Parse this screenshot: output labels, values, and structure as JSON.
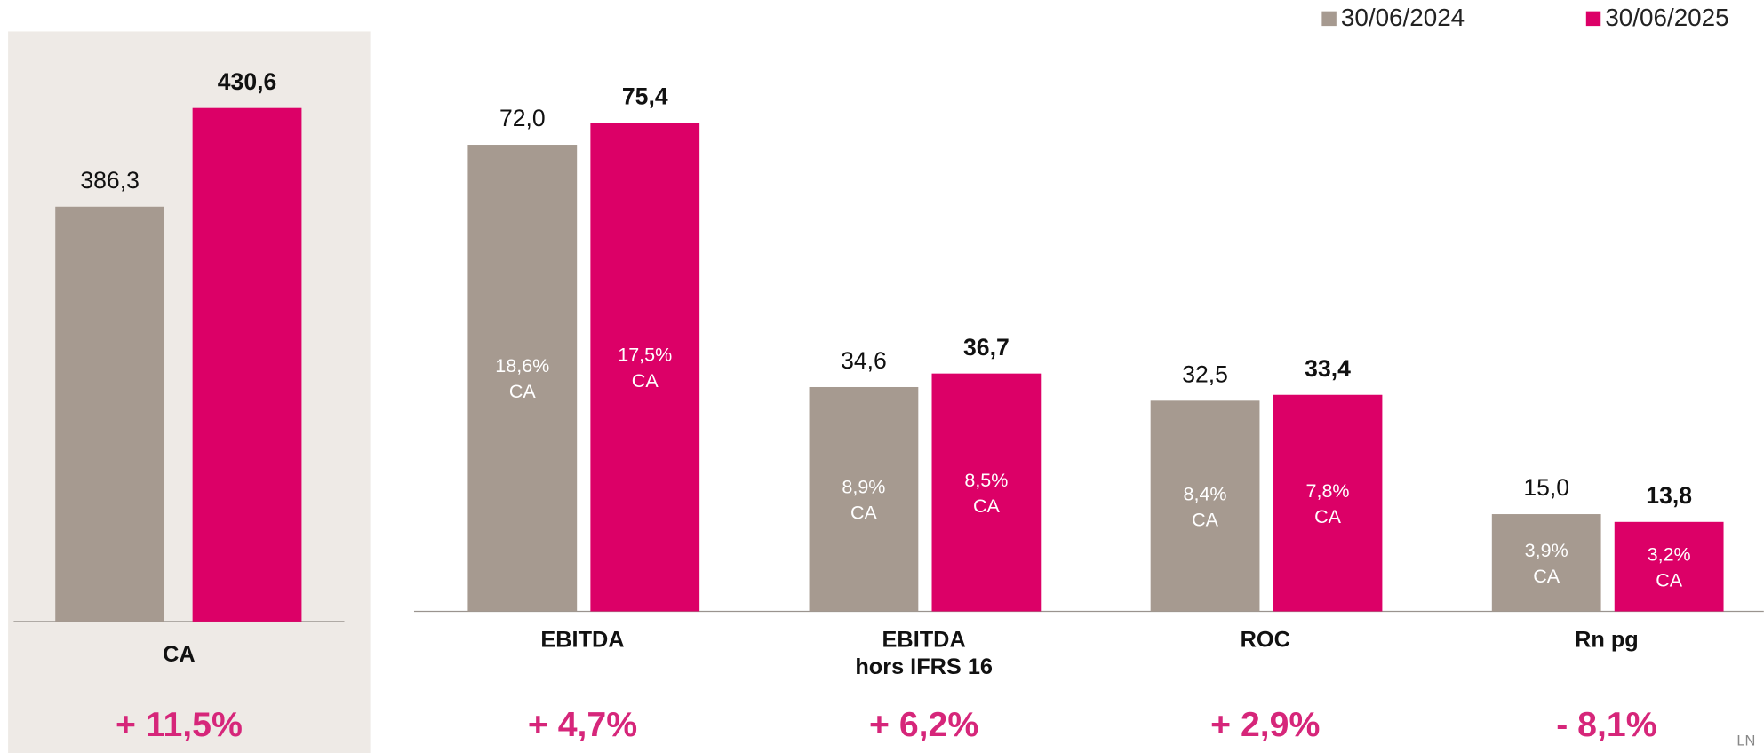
{
  "legend": [
    "30/06/2024",
    "30/06/2025"
  ],
  "footer": "LN",
  "chart_data": [
    {
      "type": "bar",
      "categories": [
        "CA"
      ],
      "series": [
        {
          "name": "30/06/2024",
          "color": "#a69a90",
          "values": [
            386.3
          ],
          "value_labels": [
            "386,3"
          ]
        },
        {
          "name": "30/06/2025",
          "color": "#dc0067",
          "values": [
            430.6
          ],
          "value_labels": [
            "430,6"
          ]
        }
      ],
      "ylim": [
        200,
        465
      ],
      "change_labels": [
        "+ 11,5%"
      ]
    },
    {
      "type": "bar",
      "categories": [
        "EBITDA",
        "EBITDA\nhors IFRS 16",
        "ROC",
        "Rn pg"
      ],
      "series": [
        {
          "name": "30/06/2024",
          "color": "#a69a90",
          "values": [
            72.0,
            34.6,
            32.5,
            15.0
          ],
          "value_labels": [
            "72,0",
            "34,6",
            "32,5",
            "15,0"
          ],
          "inner_labels": [
            "18,6%\nCA",
            "8,9%\nCA",
            "8,4%\nCA",
            "3,9%\nCA"
          ]
        },
        {
          "name": "30/06/2025",
          "color": "#dc0067",
          "values": [
            75.4,
            36.7,
            33.4,
            13.8
          ],
          "value_labels": [
            "75,4",
            "36,7",
            "33,4",
            "13,8"
          ],
          "inner_labels": [
            "17,5%\nCA",
            "8,5%\nCA",
            "7,8%\nCA",
            "3,2%\nCA"
          ]
        }
      ],
      "ylim": [
        0,
        90
      ],
      "change_labels": [
        "+ 4,7%",
        "+ 6,2%",
        "+ 2,9%",
        "- 8,1%"
      ]
    }
  ]
}
